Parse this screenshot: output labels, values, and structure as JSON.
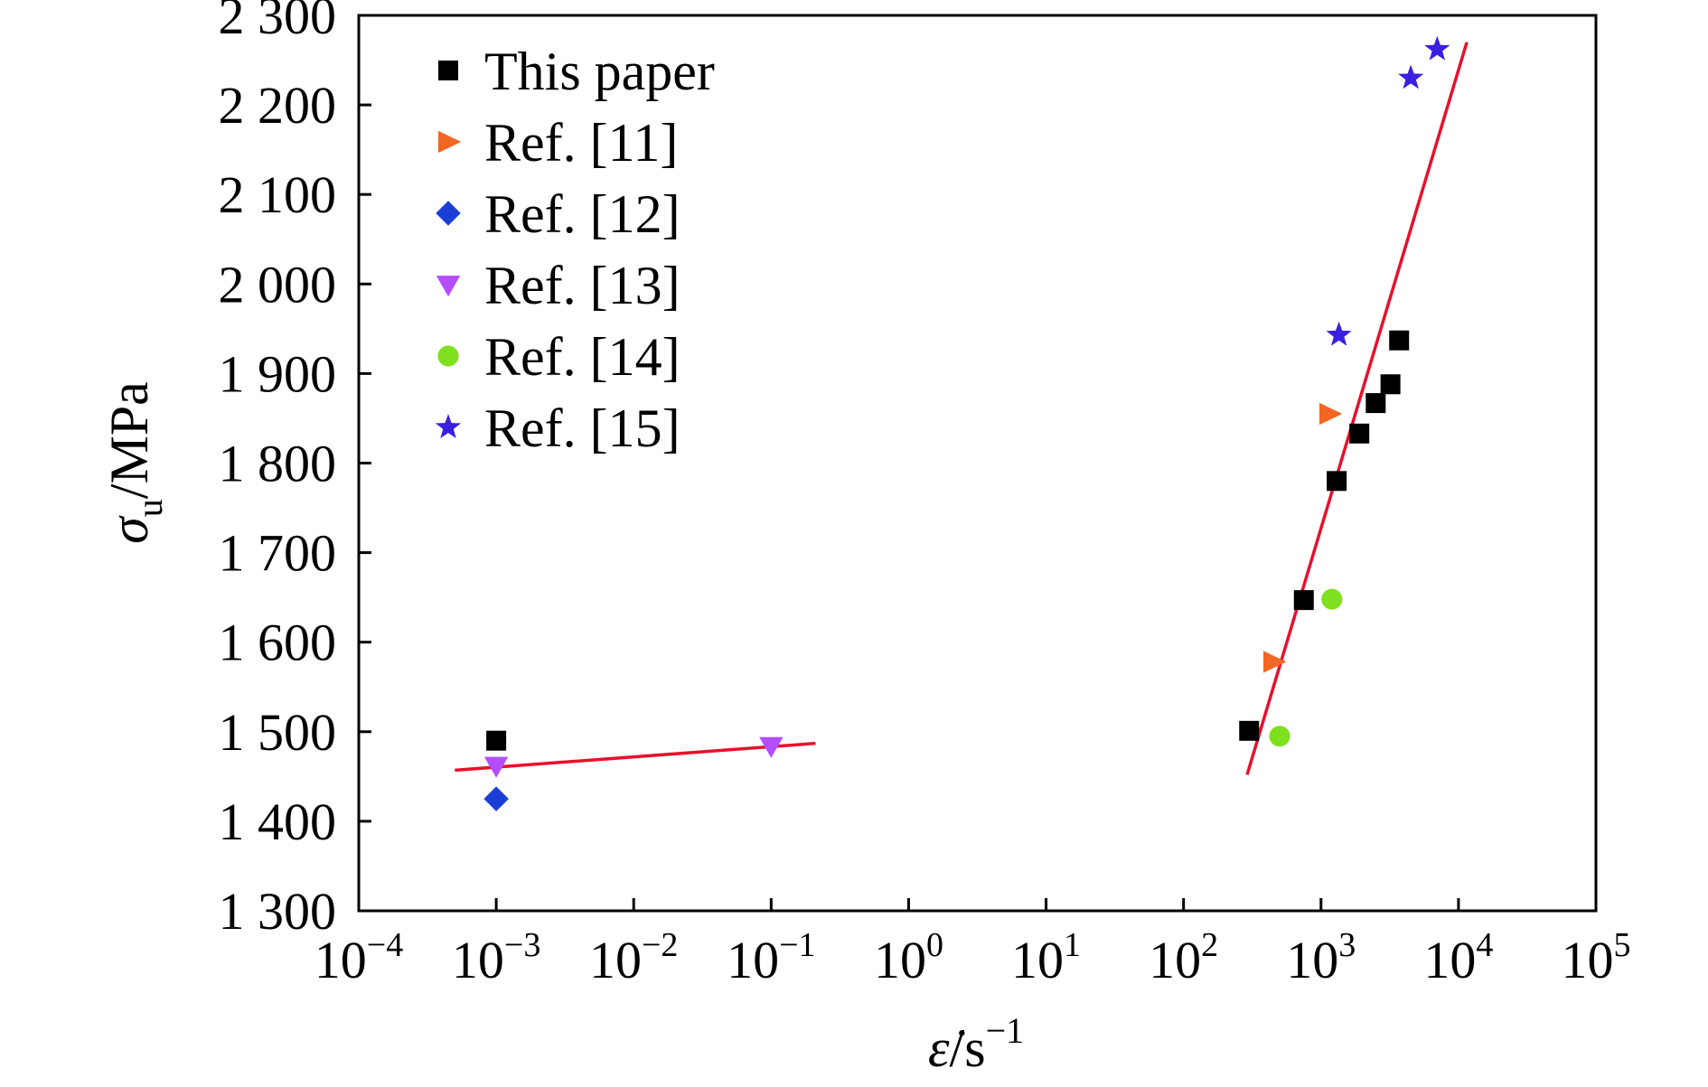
{
  "chart_data": {
    "type": "scatter",
    "xscale": "log",
    "xlim": [
      0.0001,
      100000
    ],
    "ylim": [
      1300,
      2300
    ],
    "grid": false,
    "legend_position": "top-left",
    "x_ticks": [
      {
        "value": 0.0001,
        "base": "10",
        "exp": "−4"
      },
      {
        "value": 0.001,
        "base": "10",
        "exp": "−3"
      },
      {
        "value": 0.01,
        "base": "10",
        "exp": "−2"
      },
      {
        "value": 0.1,
        "base": "10",
        "exp": "−1"
      },
      {
        "value": 1,
        "base": "10",
        "exp": "0"
      },
      {
        "value": 10,
        "base": "10",
        "exp": "1"
      },
      {
        "value": 100,
        "base": "10",
        "exp": "2"
      },
      {
        "value": 1000,
        "base": "10",
        "exp": "3"
      },
      {
        "value": 10000,
        "base": "10",
        "exp": "4"
      },
      {
        "value": 100000,
        "base": "10",
        "exp": "5"
      }
    ],
    "y_ticks": [
      {
        "value": 1300,
        "label": "1 300"
      },
      {
        "value": 1400,
        "label": "1 400"
      },
      {
        "value": 1500,
        "label": "1 500"
      },
      {
        "value": 1600,
        "label": "1 600"
      },
      {
        "value": 1700,
        "label": "1 700"
      },
      {
        "value": 1800,
        "label": "1 800"
      },
      {
        "value": 1900,
        "label": "1 900"
      },
      {
        "value": 2000,
        "label": "2 000"
      },
      {
        "value": 2100,
        "label": "2 100"
      },
      {
        "value": 2200,
        "label": "2 200"
      },
      {
        "value": 2300,
        "label": "2 300"
      }
    ],
    "xlabel": {
      "symbol": "ε̇",
      "unit": "/s",
      "exp": "−1"
    },
    "ylabel": {
      "symbol": "σ",
      "sub": "u",
      "unit": "/MPa"
    },
    "series": [
      {
        "name": "This paper",
        "marker": "square",
        "color": "#000000",
        "points": [
          [
            0.001,
            1490
          ],
          [
            300,
            1501
          ],
          [
            750,
            1647
          ],
          [
            1300,
            1780
          ],
          [
            1900,
            1833
          ],
          [
            2500,
            1867
          ],
          [
            3200,
            1888
          ],
          [
            3700,
            1937
          ]
        ]
      },
      {
        "name": "Ref. [11]",
        "marker": "triangle-right",
        "color": "#f26522",
        "points": [
          [
            450,
            1578
          ],
          [
            1150,
            1855
          ]
        ]
      },
      {
        "name": "Ref. [12]",
        "marker": "diamond",
        "color": "#1b3fd6",
        "points": [
          [
            0.001,
            1425
          ]
        ]
      },
      {
        "name": "Ref. [13]",
        "marker": "triangle-down",
        "color": "#b44dff",
        "points": [
          [
            0.001,
            1462
          ],
          [
            0.1,
            1484
          ]
        ]
      },
      {
        "name": "Ref. [14]",
        "marker": "circle",
        "color": "#7ee01f",
        "points": [
          [
            500,
            1495
          ],
          [
            1200,
            1648
          ]
        ]
      },
      {
        "name": "Ref. [15]",
        "marker": "star",
        "color": "#3a1fe0",
        "points": [
          [
            1350,
            1943
          ],
          [
            4500,
            2230
          ],
          [
            7000,
            2262
          ]
        ]
      }
    ],
    "fit_lines": [
      {
        "color": "#e8102b",
        "points": [
          [
            0.0005,
            1457
          ],
          [
            0.21,
            1487
          ]
        ]
      },
      {
        "color": "#e8102b",
        "points": [
          [
            290,
            1452
          ],
          [
            11500,
            2270
          ]
        ]
      }
    ]
  }
}
